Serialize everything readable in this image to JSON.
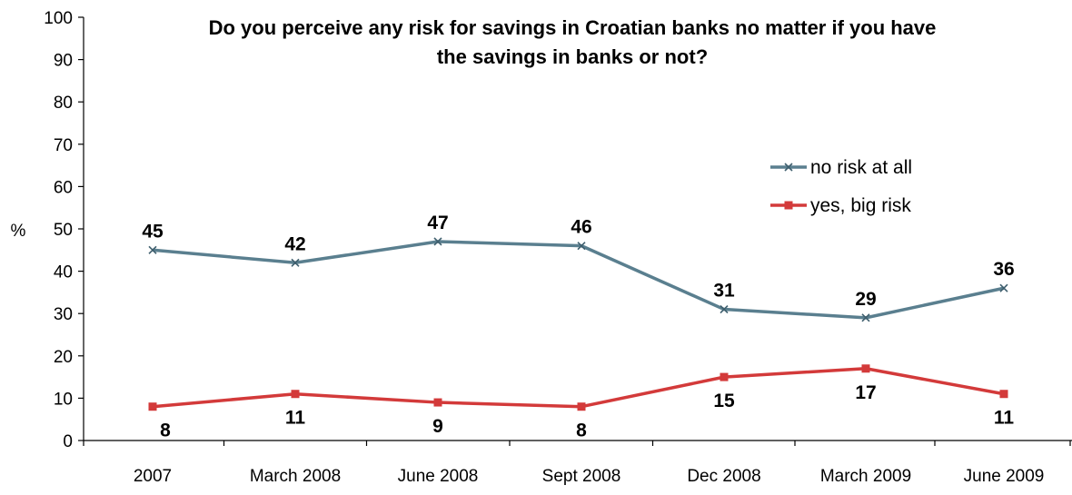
{
  "chart_data": {
    "type": "line",
    "title_lines": [
      "Do you perceive any risk for savings in Croatian banks no matter if you have",
      "the savings in banks or not?"
    ],
    "ylabel": "%",
    "xlabel": "",
    "ylim": [
      0,
      100
    ],
    "yticks": [
      0,
      10,
      20,
      30,
      40,
      50,
      60,
      70,
      80,
      90,
      100
    ],
    "categories": [
      "2007",
      "March 2008",
      "June 2008",
      "Sept 2008",
      "Dec 2008",
      "March 2009",
      "June 2009"
    ],
    "grid": false,
    "legend_position": "right",
    "series": [
      {
        "name": "no risk at all",
        "values": [
          45,
          42,
          47,
          46,
          31,
          29,
          36
        ],
        "color": "#5a7f8f",
        "marker": "x"
      },
      {
        "name": "yes, big risk",
        "values": [
          8,
          11,
          9,
          8,
          15,
          17,
          11
        ],
        "color": "#d33a3a",
        "marker": "square"
      }
    ]
  }
}
